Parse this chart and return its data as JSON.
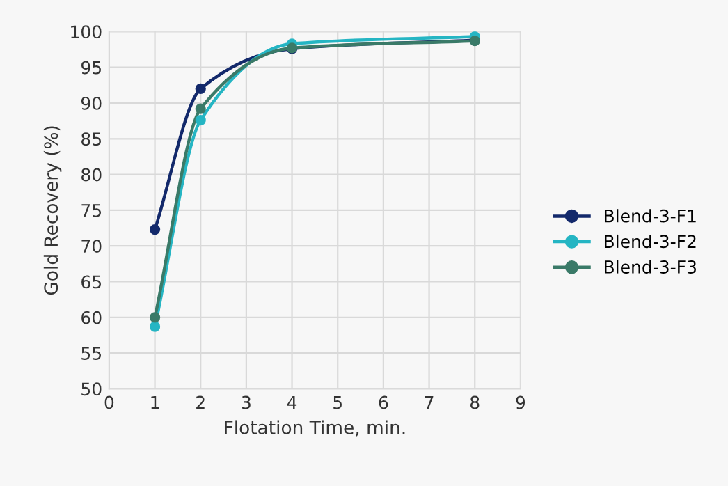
{
  "chart_data": {
    "type": "line",
    "xlabel": "Flotation Time, min.",
    "ylabel": "Gold Recovery (%)",
    "x": [
      1,
      2,
      4,
      8
    ],
    "series": [
      {
        "name": "Blend-3-F1",
        "color": "#13296b",
        "values": [
          72.3,
          92.0,
          97.6,
          98.8
        ]
      },
      {
        "name": "Blend-3-F2",
        "color": "#25b5c3",
        "values": [
          58.7,
          87.6,
          98.3,
          99.3
        ]
      },
      {
        "name": "Blend-3-F3",
        "color": "#3a7a68",
        "values": [
          60.0,
          89.2,
          97.7,
          98.7
        ]
      }
    ],
    "xlim": [
      0,
      9
    ],
    "xticks": [
      0,
      1,
      2,
      3,
      4,
      5,
      6,
      7,
      8,
      9
    ],
    "ylim": [
      50,
      100
    ],
    "yticks": [
      50,
      55,
      60,
      65,
      70,
      75,
      80,
      85,
      90,
      95,
      100
    ],
    "grid": true,
    "legend": "right",
    "marker": "circle",
    "line_style": "solid"
  }
}
